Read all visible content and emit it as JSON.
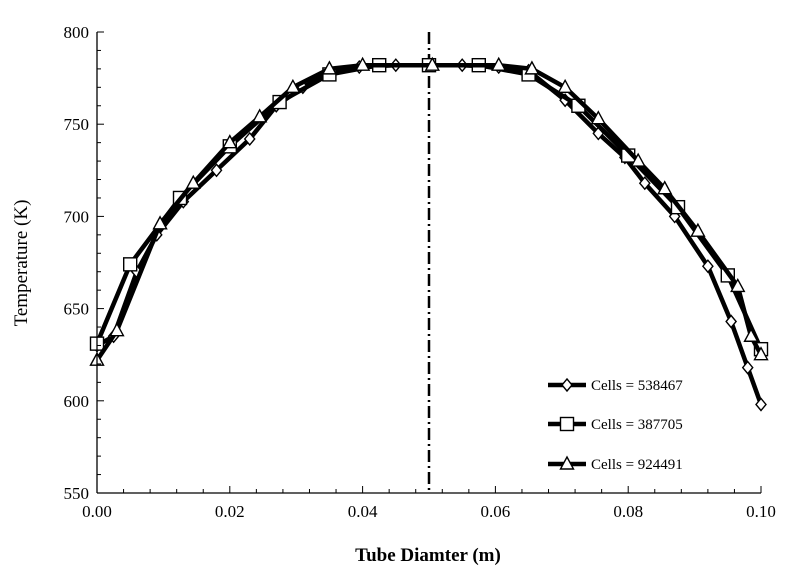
{
  "chart_data": {
    "type": "line",
    "title": "",
    "xlabel": "Tube Diamter (m)",
    "ylabel": "Temperature (K)",
    "xlim": [
      0,
      0.1
    ],
    "ylim": [
      550,
      800
    ],
    "x_ticks": [
      "0.00",
      "0.02",
      "0.04",
      "0.06",
      "0.08",
      "0.10"
    ],
    "y_ticks": [
      "550",
      "600",
      "650",
      "700",
      "750",
      "800"
    ],
    "grid": false,
    "legend_position": "bottom-right",
    "centerline_x": 0.05,
    "series": [
      {
        "name": "Cells = 538467",
        "marker": "diamond",
        "x": [
          0.0,
          0.0025,
          0.006,
          0.009,
          0.013,
          0.018,
          0.023,
          0.027,
          0.031,
          0.035,
          0.0395,
          0.045,
          0.0505,
          0.055,
          0.0605,
          0.065,
          0.0705,
          0.0755,
          0.0795,
          0.0825,
          0.087,
          0.092,
          0.0955,
          0.098,
          0.1
        ],
        "y": [
          630,
          635,
          670,
          690,
          708,
          725,
          742,
          760,
          770,
          778,
          781,
          782,
          782,
          782,
          781,
          779,
          763,
          745,
          732,
          718,
          700,
          673,
          643,
          618,
          598
        ]
      },
      {
        "name": "Cells = 387705",
        "marker": "square",
        "x": [
          0.0,
          0.005,
          0.0125,
          0.02,
          0.0275,
          0.035,
          0.0425,
          0.05,
          0.0575,
          0.065,
          0.0725,
          0.08,
          0.0875,
          0.095,
          0.1
        ],
        "y": [
          631,
          674,
          710,
          738,
          762,
          777,
          782,
          782,
          782,
          777,
          760,
          733,
          705,
          668,
          628
        ]
      },
      {
        "name": "Cells = 924491",
        "marker": "triangle",
        "x": [
          0.0,
          0.003,
          0.0095,
          0.0145,
          0.02,
          0.0245,
          0.0295,
          0.035,
          0.04,
          0.0505,
          0.0605,
          0.0655,
          0.0705,
          0.0755,
          0.0815,
          0.0855,
          0.0905,
          0.0965,
          0.0985,
          0.1
        ],
        "y": [
          622,
          638,
          696,
          718,
          740,
          754,
          770,
          780,
          782,
          782,
          782,
          780,
          770,
          753,
          730,
          715,
          692,
          662,
          635,
          625
        ]
      }
    ]
  }
}
